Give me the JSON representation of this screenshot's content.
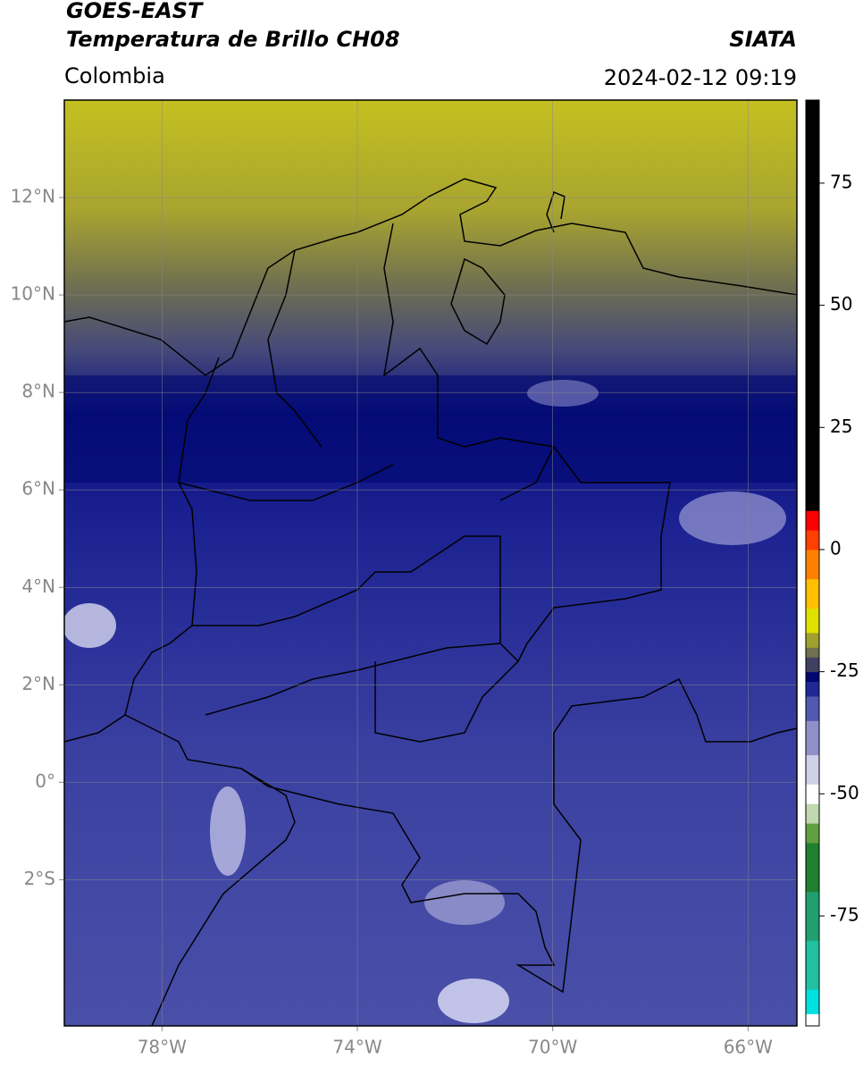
{
  "header": {
    "title_line1": "GOES-EAST",
    "title_line2": "Temperatura de Brillo CH08",
    "region": "Colombia",
    "source": "SIATA",
    "timestamp": "2024-02-12 09:19"
  },
  "map": {
    "xlim": [
      -80,
      -65
    ],
    "ylim": [
      -5,
      14
    ],
    "grid": true,
    "xticks": [
      {
        "value": -78,
        "label": "78°W"
      },
      {
        "value": -74,
        "label": "74°W"
      },
      {
        "value": -70,
        "label": "70°W"
      },
      {
        "value": -66,
        "label": "66°W"
      }
    ],
    "yticks": [
      {
        "value": 12,
        "label": "12°N"
      },
      {
        "value": 10,
        "label": "10°N"
      },
      {
        "value": 8,
        "label": "8°N"
      },
      {
        "value": 6,
        "label": "6°N"
      },
      {
        "value": 4,
        "label": "4°N"
      },
      {
        "value": 2,
        "label": "2°N"
      },
      {
        "value": 0,
        "label": "0°"
      },
      {
        "value": -2,
        "label": "2°S"
      }
    ]
  },
  "colorbar": {
    "lim": [
      -97.5,
      92
    ],
    "ticks": [
      75,
      50,
      25,
      0,
      -25,
      -50,
      -75
    ],
    "stops": [
      {
        "value": -97.5,
        "color": "#ffffff"
      },
      {
        "value": -95,
        "color": "#00e0e0"
      },
      {
        "value": -90,
        "color": "#20c0a0"
      },
      {
        "value": -80,
        "color": "#20a070"
      },
      {
        "value": -70,
        "color": "#208030"
      },
      {
        "value": -60,
        "color": "#60a040"
      },
      {
        "value": -56,
        "color": "#c0d8b0"
      },
      {
        "value": -52,
        "color": "#ffffff"
      },
      {
        "value": -48,
        "color": "#d0d0e8"
      },
      {
        "value": -42,
        "color": "#9090c8"
      },
      {
        "value": -35,
        "color": "#5058b0"
      },
      {
        "value": -30,
        "color": "#202898"
      },
      {
        "value": -27,
        "color": "#000870"
      },
      {
        "value": -25,
        "color": "#404060"
      },
      {
        "value": -22,
        "color": "#707050"
      },
      {
        "value": -20,
        "color": "#a0a030"
      },
      {
        "value": -17,
        "color": "#e0e000"
      },
      {
        "value": -12,
        "color": "#ffc000"
      },
      {
        "value": -6,
        "color": "#ff8000"
      },
      {
        "value": 0,
        "color": "#ff4000"
      },
      {
        "value": 4,
        "color": "#ff0000"
      },
      {
        "value": 8,
        "color": "#000000"
      }
    ]
  }
}
